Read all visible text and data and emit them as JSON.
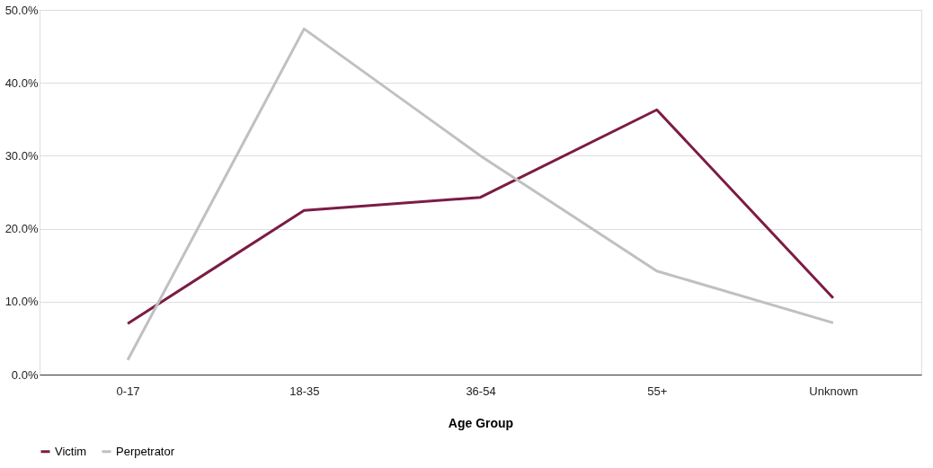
{
  "chart_data": {
    "type": "line",
    "xlabel": "Age Group",
    "categories": [
      "0-17",
      "18-35",
      "36-54",
      "55+",
      "Unknown"
    ],
    "series": [
      {
        "name": "Victim",
        "color": "#7b1c45",
        "values": [
          7.0,
          22.5,
          24.3,
          36.3,
          10.5
        ]
      },
      {
        "name": "Perpetrator",
        "color": "#c0c0c0",
        "values": [
          2.0,
          47.4,
          30.0,
          14.2,
          7.1
        ]
      }
    ],
    "ylim": [
      0,
      50
    ],
    "yticks": [
      {
        "value": 0,
        "label": "0.0%"
      },
      {
        "value": 10,
        "label": "10.0%"
      },
      {
        "value": 20,
        "label": "20.0%"
      },
      {
        "value": 30,
        "label": "30.0%"
      },
      {
        "value": 40,
        "label": "40.0%"
      },
      {
        "value": 50,
        "label": "50.0%"
      }
    ],
    "grid": "y",
    "legend": "bottom",
    "marker": "none",
    "line_style": "solid"
  }
}
